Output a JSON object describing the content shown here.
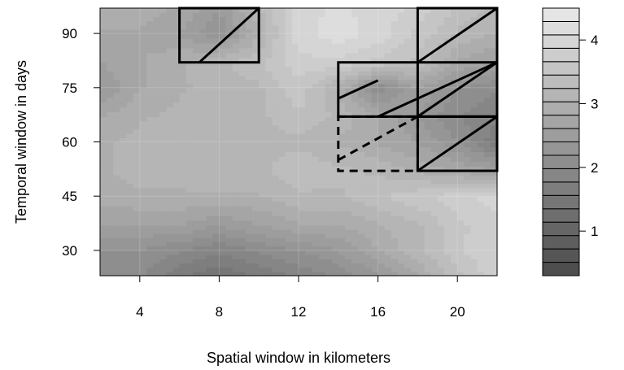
{
  "chart_data": {
    "type": "heatmap",
    "title": "",
    "xlabel": "Spatial window in kilometers",
    "ylabel": "Temporal window in days",
    "x_ticks": [
      4,
      8,
      12,
      16,
      20
    ],
    "y_ticks": [
      30,
      45,
      60,
      75,
      90
    ],
    "xlim": [
      2,
      22
    ],
    "ylim": [
      23,
      97
    ],
    "colorbar": {
      "ticks": [
        1,
        2,
        3,
        4
      ],
      "range": [
        0.3,
        4.5
      ],
      "levels": 20,
      "colors": {
        "low": "#4a4a4a",
        "high": "#e9e9e9"
      }
    },
    "x": [
      2,
      4,
      6,
      8,
      10,
      12,
      14,
      16,
      18,
      20,
      22
    ],
    "y": [
      23,
      30,
      37,
      45,
      52,
      60,
      67,
      75,
      82,
      90,
      97
    ],
    "z": [
      [
        2.0,
        2.0,
        1.6,
        1.4,
        1.6,
        1.8,
        2.0,
        2.4,
        2.8,
        3.4,
        3.8
      ],
      [
        2.2,
        2.2,
        2.0,
        1.8,
        2.0,
        2.2,
        2.4,
        2.8,
        3.2,
        3.6,
        3.9
      ],
      [
        2.6,
        2.6,
        2.6,
        2.4,
        2.6,
        2.8,
        2.8,
        3.0,
        3.2,
        3.6,
        3.8
      ],
      [
        2.9,
        3.0,
        3.0,
        3.0,
        3.0,
        3.2,
        3.2,
        3.4,
        3.6,
        3.8,
        4.0
      ],
      [
        3.0,
        3.1,
        3.1,
        3.2,
        3.2,
        3.4,
        3.3,
        3.2,
        3.0,
        2.8,
        2.6
      ],
      [
        3.0,
        3.1,
        3.1,
        3.1,
        3.1,
        3.2,
        3.0,
        2.8,
        2.6,
        2.2,
        1.6
      ],
      [
        2.8,
        3.0,
        3.1,
        3.1,
        3.2,
        3.4,
        3.2,
        2.8,
        2.4,
        2.0,
        1.8
      ],
      [
        2.4,
        2.8,
        3.0,
        3.1,
        3.2,
        3.6,
        3.0,
        2.0,
        2.6,
        2.2,
        2.0
      ],
      [
        2.6,
        2.8,
        3.0,
        3.2,
        3.4,
        3.8,
        3.8,
        3.6,
        3.4,
        2.8,
        2.6
      ],
      [
        2.8,
        2.8,
        2.6,
        2.2,
        3.0,
        4.0,
        4.2,
        4.0,
        3.6,
        3.2,
        3.0
      ],
      [
        2.9,
        2.9,
        2.8,
        2.4,
        3.2,
        4.0,
        4.1,
        4.0,
        3.8,
        3.4,
        3.2
      ]
    ],
    "annotations": [
      {
        "kind": "solid-box",
        "x": [
          6,
          10
        ],
        "y": [
          82,
          97
        ],
        "diagonals": [
          [
            7,
            82,
            10,
            97
          ]
        ]
      },
      {
        "kind": "solid-box",
        "x": [
          14,
          22
        ],
        "y": [
          67,
          82
        ],
        "diagonals": [
          [
            14,
            72,
            16,
            77
          ],
          [
            16,
            67,
            22,
            82
          ]
        ]
      },
      {
        "kind": "solid-box",
        "x": [
          18,
          22
        ],
        "y": [
          52,
          67
        ],
        "diagonals": [
          [
            18,
            52,
            22,
            67
          ]
        ]
      },
      {
        "kind": "solid-box",
        "x": [
          18,
          22
        ],
        "y": [
          67,
          97
        ],
        "diagonals": [
          [
            18,
            67,
            22,
            82
          ],
          [
            18,
            82,
            22,
            97
          ]
        ]
      },
      {
        "kind": "dashed-box",
        "x": [
          14,
          18
        ],
        "y": [
          52,
          67
        ],
        "diagonals": [
          [
            14,
            55,
            18,
            67
          ]
        ]
      }
    ]
  }
}
